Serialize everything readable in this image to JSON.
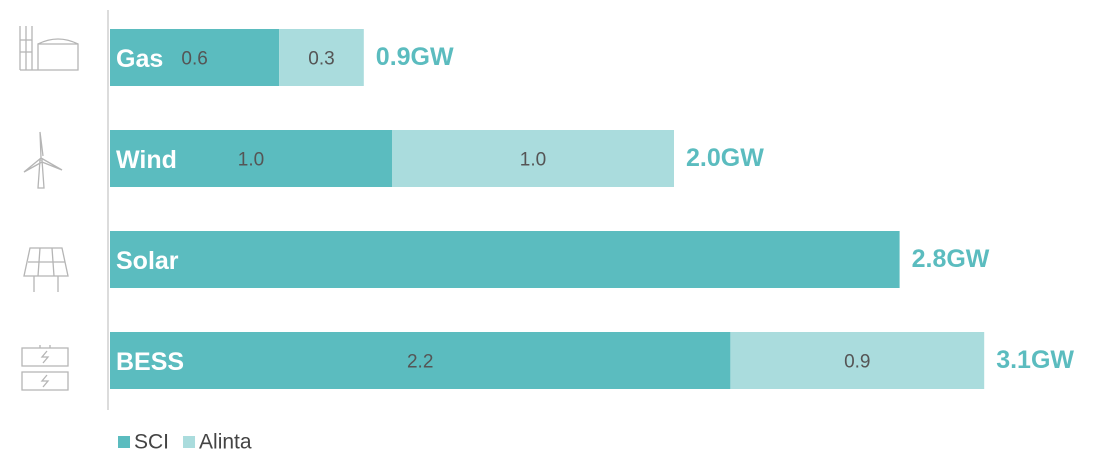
{
  "chart_data": {
    "type": "stacked-bar-horizontal",
    "categories": [
      "Gas",
      "Wind",
      "Solar",
      "BESS"
    ],
    "series": [
      {
        "name": "SCI",
        "color": "#5bbcbf",
        "values": [
          0.6,
          1.0,
          2.8,
          2.2
        ],
        "value_labels": [
          "0.6",
          "1.0",
          null,
          "2.2"
        ]
      },
      {
        "name": "Alinta",
        "color": "#aadcdd",
        "values": [
          0.3,
          1.0,
          null,
          0.9
        ],
        "value_labels": [
          "0.3",
          "1.0",
          null,
          "0.9"
        ]
      }
    ],
    "totals": [
      0.9,
      2.0,
      2.8,
      3.1
    ],
    "total_labels": [
      "0.9GW",
      "2.0GW",
      "2.8GW",
      "3.1GW"
    ],
    "xlim": [
      0,
      3.5
    ],
    "legend": "bottom-left"
  }
}
